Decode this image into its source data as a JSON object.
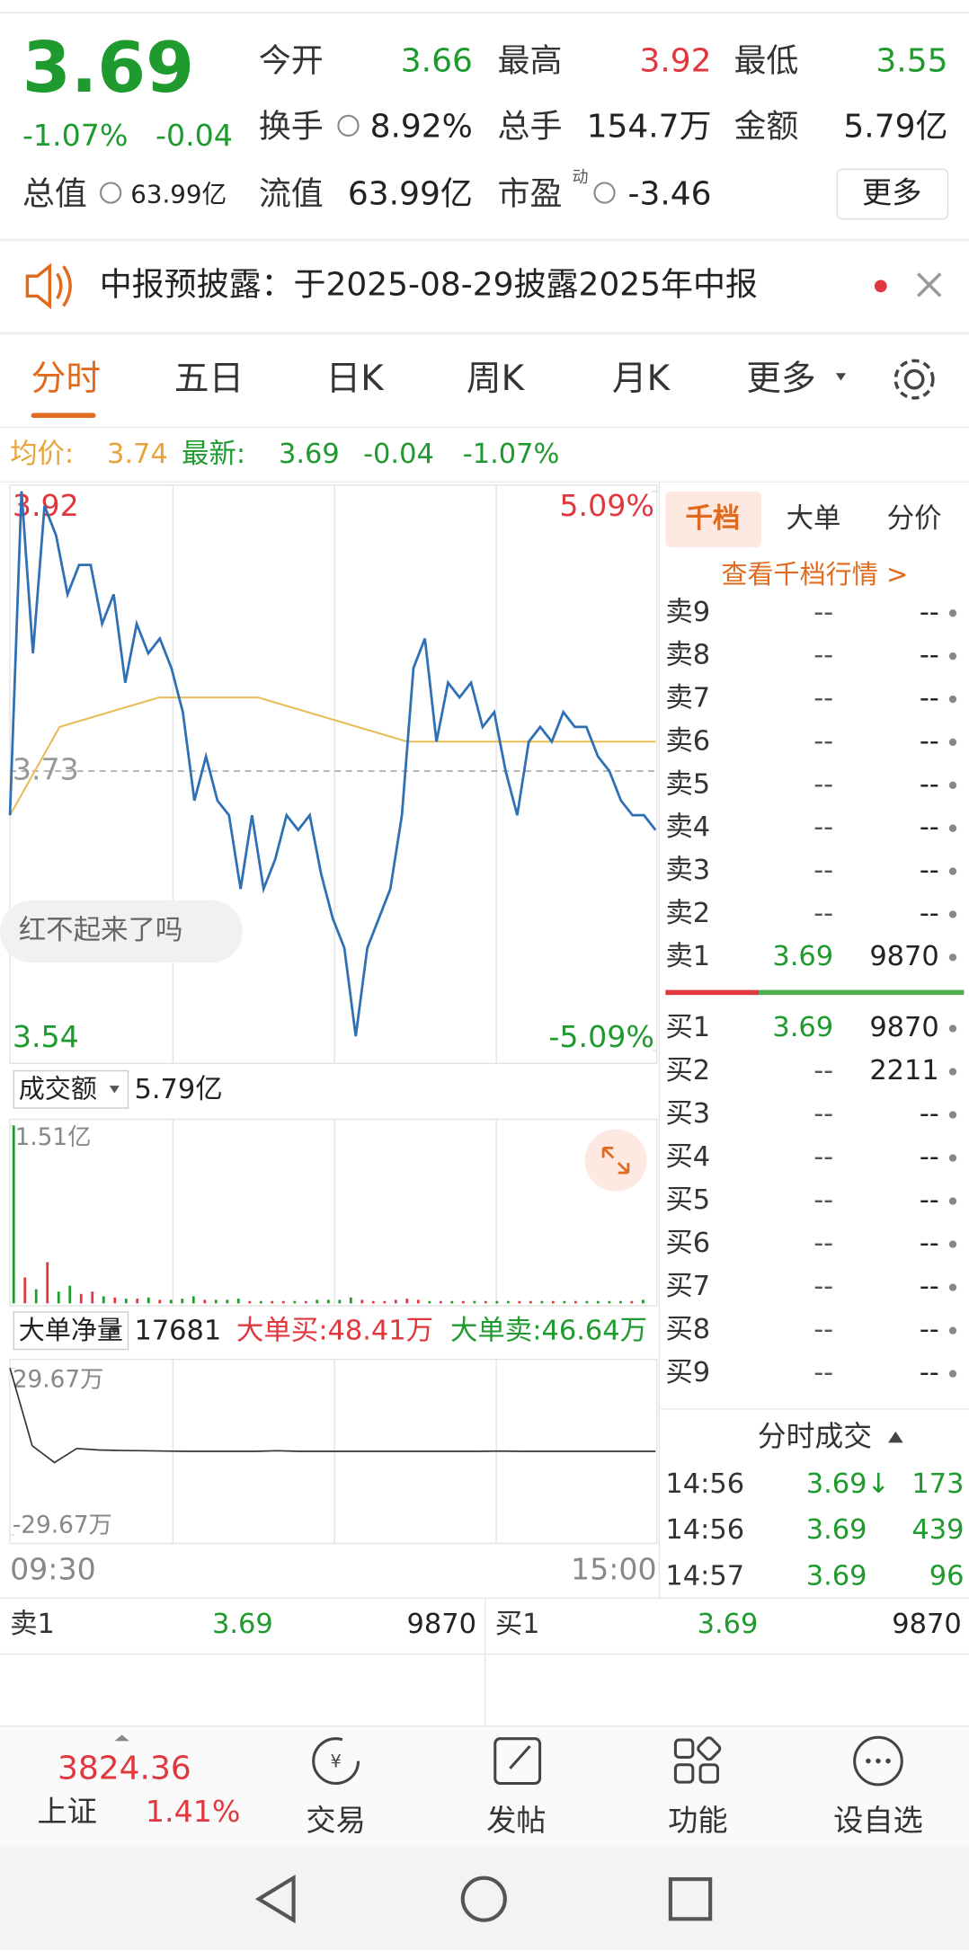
{
  "quote": {
    "price": "3.69",
    "change_pct": "-1.07%",
    "change": "-0.04",
    "fields": [
      {
        "label": "今开",
        "value": "3.66",
        "color": "#1f9a2e"
      },
      {
        "label": "最高",
        "value": "3.92",
        "color": "#e0383e"
      },
      {
        "label": "最低",
        "value": "3.55",
        "color": "#1f9a2e"
      },
      {
        "label": "换手",
        "value": "8.92%",
        "color": "#222222"
      },
      {
        "label": "总手",
        "value": "154.7万",
        "color": "#222222"
      },
      {
        "label": "金额",
        "value": "5.79亿",
        "color": "#222222"
      },
      {
        "label": "总值",
        "value": "63.99亿",
        "color": "#222222"
      },
      {
        "label": "流值",
        "value": "63.99亿",
        "color": "#222222"
      },
      {
        "label": "市盈",
        "value": "-3.46",
        "color": "#222222",
        "badge": "动"
      }
    ],
    "more": "更多"
  },
  "notice": "中报预披露：于2025-08-29披露2025年中报",
  "tabs": [
    "分时",
    "五日",
    "日K",
    "周K",
    "月K",
    "更多"
  ],
  "summary": {
    "avg_label": "均价:",
    "avg": "3.74",
    "latest_label": "最新:",
    "latest": "3.69",
    "change": "-0.04",
    "change_pct": "-1.07%"
  },
  "comment": "红不起来了吗",
  "chart_data": {
    "type": "line",
    "ylim": [
      3.54,
      3.92
    ],
    "yticks": [
      3.92,
      3.73,
      3.54
    ],
    "y2lim": [
      -5.09,
      5.09
    ],
    "y2ticks": [
      {
        "value": 5.09,
        "label": "5.09%"
      },
      {
        "value": -5.09,
        "label": "-5.09%"
      }
    ],
    "x_labels": [
      "09:30",
      "15:00"
    ],
    "series": [
      {
        "color": "#2f6fb3",
        "values": [
          3.7,
          3.92,
          3.81,
          3.91,
          3.89,
          3.85,
          3.87,
          3.87,
          3.83,
          3.85,
          3.79,
          3.83,
          3.81,
          3.82,
          3.8,
          3.77,
          3.71,
          3.74,
          3.71,
          3.7,
          3.65,
          3.7,
          3.65,
          3.67,
          3.7,
          3.69,
          3.7,
          3.66,
          3.63,
          3.61,
          3.55,
          3.61,
          3.63,
          3.65,
          3.7,
          3.8,
          3.82,
          3.75,
          3.79,
          3.78,
          3.79,
          3.76,
          3.77,
          3.73,
          3.7,
          3.75,
          3.76,
          3.75,
          3.77,
          3.76,
          3.76,
          3.74,
          3.73,
          3.71,
          3.7,
          3.7,
          3.69
        ]
      },
      {
        "color": "#e8bd55",
        "values": [
          3.7,
          3.76,
          3.77,
          3.78,
          3.78,
          3.78,
          3.77,
          3.76,
          3.75,
          3.75,
          3.75,
          3.75,
          3.75,
          3.75
        ]
      }
    ]
  },
  "volume": {
    "label": "成交额",
    "total": "5.79亿",
    "ylim": [
      0,
      1.51
    ],
    "yticks": [
      {
        "value": 1.51,
        "label": "1.51亿"
      }
    ],
    "values": [
      1.51,
      0.22,
      0.12,
      0.35,
      0.1,
      0.15,
      0.08,
      0.1,
      0.06,
      0.05,
      0.04,
      0.04,
      0.05,
      0.03,
      0.03,
      0.04,
      0.06,
      0.03,
      0.03,
      0.03,
      0.04,
      0.02,
      0.02,
      0.02,
      0.02,
      0.02,
      0.02,
      0.03,
      0.03,
      0.03,
      0.05,
      0.03,
      0.02,
      0.02,
      0.03,
      0.04,
      0.03,
      0.02,
      0.02,
      0.02,
      0.02,
      0.02,
      0.02,
      0.02,
      0.02,
      0.02,
      0.02,
      0.02,
      0.02,
      0.02,
      0.02,
      0.02,
      0.02,
      0.02,
      0.02,
      0.02,
      0.03
    ]
  },
  "big_orders": {
    "label": "大单净量",
    "net": "17681",
    "buy": "大单买:48.41万",
    "sell": "大单卖:46.64万",
    "ylim": [
      -29.67,
      29.67
    ],
    "yticks": [
      {
        "value": 29.67,
        "label": "29.67万"
      },
      {
        "value": -29.67,
        "label": "-29.67万"
      }
    ],
    "values": [
      29.67,
      2,
      -4,
      1,
      0.5,
      0.3,
      0.2,
      0.1,
      0,
      0,
      0,
      0,
      0.2,
      0,
      0,
      0,
      0,
      0,
      0,
      0,
      0,
      0,
      0.1,
      0,
      0,
      0,
      0,
      0,
      0,
      0
    ]
  },
  "order_book": {
    "tabs": [
      "千档",
      "大单",
      "分价"
    ],
    "link": "查看千档行情 >",
    "asks": [
      [
        "卖9",
        "--",
        "--"
      ],
      [
        "卖8",
        "--",
        "--"
      ],
      [
        "卖7",
        "--",
        "--"
      ],
      [
        "卖6",
        "--",
        "--"
      ],
      [
        "卖5",
        "--",
        "--"
      ],
      [
        "卖4",
        "--",
        "--"
      ],
      [
        "卖3",
        "--",
        "--"
      ],
      [
        "卖2",
        "--",
        "--"
      ],
      [
        "卖1",
        "3.69",
        "9870"
      ]
    ],
    "bids": [
      [
        "买1",
        "3.69",
        "9870"
      ],
      [
        "买2",
        "--",
        "2211"
      ],
      [
        "买3",
        "--",
        "--"
      ],
      [
        "买4",
        "--",
        "--"
      ],
      [
        "买5",
        "--",
        "--"
      ],
      [
        "买6",
        "--",
        "--"
      ],
      [
        "买7",
        "--",
        "--"
      ],
      [
        "买8",
        "--",
        "--"
      ],
      [
        "买9",
        "--",
        "--"
      ]
    ]
  },
  "trades": {
    "title": "分时成交",
    "rows": [
      [
        "14:56",
        "3.69↓",
        "173"
      ],
      [
        "14:56",
        "3.69",
        "439"
      ],
      [
        "14:57",
        "3.69",
        "96"
      ]
    ]
  },
  "best_quotes": [
    [
      "卖1",
      "3.69",
      "9870"
    ],
    [
      "买1",
      "3.69",
      "9870"
    ]
  ],
  "nav": {
    "index_value": "3824.36",
    "index_name": "上证",
    "index_change": "1.41%",
    "items": [
      "交易",
      "发帖",
      "功能",
      "设自选"
    ]
  }
}
